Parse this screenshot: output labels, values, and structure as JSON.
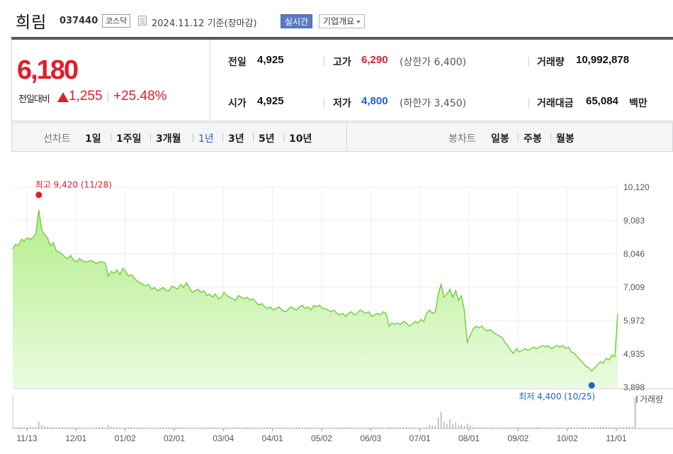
{
  "header": {
    "company_name": "희림",
    "stock_code": "037440",
    "market": "코스닥",
    "date": "2024.11.12",
    "date_suffix": "기준(장마감)",
    "realtime_label": "실시간",
    "company_info_label": "기업개요"
  },
  "quote": {
    "price": "6,180",
    "change_label": "전일대비",
    "change_value": "1,255",
    "change_pct": "+25.48%",
    "prev_close_label": "전일",
    "prev_close": "4,925",
    "open_label": "시가",
    "open": "4,925",
    "high_label": "고가",
    "high": "6,290",
    "upper_limit_text": "(상한가 6,400)",
    "low_label": "저가",
    "low": "4,800",
    "lower_limit_text": "(하한가 3,450)",
    "volume_label": "거래량",
    "volume": "10,992,878",
    "amount_label": "거래대금",
    "amount": "65,084",
    "amount_unit": "백만",
    "colors": {
      "up": "#e01e2b",
      "down": "#1f63c6"
    }
  },
  "periods": {
    "line_title": "선차트",
    "line_items": [
      "1일",
      "1주일",
      "3개월",
      "1년",
      "3년",
      "5년",
      "10년"
    ],
    "active_index": 3,
    "candle_title": "봉차트",
    "candle_items": [
      "일봉",
      "주봉",
      "월봉"
    ]
  },
  "chart_data": {
    "type": "area",
    "x_tick_labels": [
      "11/13",
      "12/01",
      "01/02",
      "02/01",
      "03/04",
      "04/01",
      "05/02",
      "06/03",
      "07/01",
      "08/01",
      "09/02",
      "10/02",
      "11/01"
    ],
    "y_tick_labels": [
      "10,120",
      "9,083",
      "8,046",
      "7,009",
      "5,972",
      "4,935",
      "3,898"
    ],
    "ylim": [
      3898,
      10120
    ],
    "grid": true,
    "high_annotation": "최고 9,420 (11/28)",
    "low_annotation": "최저 4,400 (10/25)",
    "volume_label": "거래량",
    "fill_color": "#b5ed8c",
    "line_color": "#6fcf3a",
    "series": [
      {
        "values": [
          8200,
          8350,
          8300,
          8500,
          8450,
          8550,
          8500,
          8550,
          8700,
          9420,
          8800,
          8650,
          8550,
          8300,
          8400,
          8150,
          8100,
          8050,
          7950,
          7900,
          8000,
          7850,
          7800,
          7900,
          7850,
          7800,
          7800,
          7850,
          7800,
          7750,
          7800,
          7800,
          7750,
          7350,
          7500,
          7450,
          7550,
          7400,
          7600,
          7500,
          7350,
          7400,
          7300,
          7200,
          7150,
          7100,
          7050,
          7100,
          6950,
          7000,
          6900,
          6950,
          7000,
          6900,
          6900,
          7050,
          7000,
          6950,
          7100,
          7000,
          7150,
          7000,
          6850,
          6900,
          6950,
          6850,
          6900,
          6750,
          6800,
          6700,
          6800,
          6650,
          6700,
          6850,
          6750,
          6700,
          6650,
          6600,
          6750,
          6700,
          6650,
          6700,
          6600,
          6650,
          6550,
          6450,
          6500,
          6400,
          6350,
          6400,
          6300,
          6350,
          6400,
          6300,
          6250,
          6300,
          6400,
          6350,
          6300,
          6400,
          6450,
          6350,
          6400,
          6300,
          6450,
          6400,
          6450,
          6350,
          6350,
          6300,
          6250,
          6300,
          6200,
          6150,
          6200,
          6100,
          6200,
          6250,
          6150,
          6200,
          6300,
          6250,
          6200,
          6250,
          6100,
          6150,
          6200,
          6150,
          6250,
          6200,
          5800,
          5900,
          5850,
          5900,
          5850,
          5950,
          5900,
          5800,
          5850,
          5950,
          5900,
          6000,
          5950,
          6200,
          6300,
          6200,
          6250,
          6800,
          7100,
          6700,
          6800,
          6950,
          6700,
          6900,
          6600,
          6750,
          6300,
          5300,
          5500,
          5700,
          5800,
          5750,
          5800,
          5700,
          5650,
          5700,
          5600,
          5550,
          5500,
          5450,
          5300,
          5200,
          5050,
          4950,
          5100,
          5000,
          5050,
          5100,
          5050,
          5100,
          5150,
          5100,
          5150,
          5200,
          5150,
          5200,
          5100,
          5150,
          5200,
          5150,
          5200,
          5100,
          5150,
          5000,
          4950,
          4850,
          4750,
          4650,
          4550,
          4500,
          4400,
          4500,
          4600,
          4700,
          4650,
          4800,
          4750,
          4900,
          4850,
          6180
        ]
      },
      {
        "name": "거래량",
        "values": [
          12,
          8,
          10,
          14,
          9,
          11,
          15,
          10,
          9,
          60,
          30,
          18,
          15,
          12,
          10,
          8,
          9,
          11,
          10,
          9,
          8,
          9,
          10,
          8,
          7,
          9,
          8,
          7,
          8,
          9,
          10,
          9,
          8,
          30,
          15,
          12,
          10,
          11,
          9,
          8,
          10,
          9,
          8,
          7,
          9,
          8,
          7,
          8,
          9,
          8,
          7,
          9,
          8,
          7,
          8,
          9,
          10,
          8,
          9,
          8,
          10,
          8,
          7,
          8,
          9,
          8,
          7,
          8,
          9,
          8,
          7,
          8,
          7,
          9,
          8,
          7,
          8,
          9,
          8,
          7,
          8,
          9,
          8,
          7,
          9,
          8,
          7,
          8,
          9,
          8,
          7,
          8,
          7,
          8,
          9,
          8,
          7,
          8,
          9,
          8,
          7,
          8,
          9,
          8,
          7,
          8,
          9,
          8,
          7,
          8,
          7,
          8,
          9,
          8,
          7,
          8,
          9,
          8,
          7,
          8,
          7,
          8,
          9,
          8,
          7,
          8,
          9,
          8,
          7,
          8,
          15,
          10,
          8,
          9,
          8,
          10,
          9,
          8,
          9,
          8,
          10,
          9,
          8,
          12,
          30,
          20,
          25,
          90,
          140,
          60,
          40,
          80,
          35,
          50,
          25,
          30,
          20,
          40,
          25,
          15,
          12,
          10,
          9,
          10,
          8,
          9,
          10,
          8,
          9,
          8,
          9,
          10,
          8,
          9,
          10,
          9,
          8,
          9,
          10,
          8,
          9,
          10,
          9,
          8,
          9,
          10,
          9,
          8,
          9,
          10,
          8,
          9,
          10,
          9,
          8,
          9,
          10,
          12,
          10,
          9,
          11,
          12,
          10,
          14,
          12,
          11,
          10,
          9,
          10,
          12,
          10,
          11,
          13,
          15,
          12,
          260
        ]
      }
    ]
  }
}
